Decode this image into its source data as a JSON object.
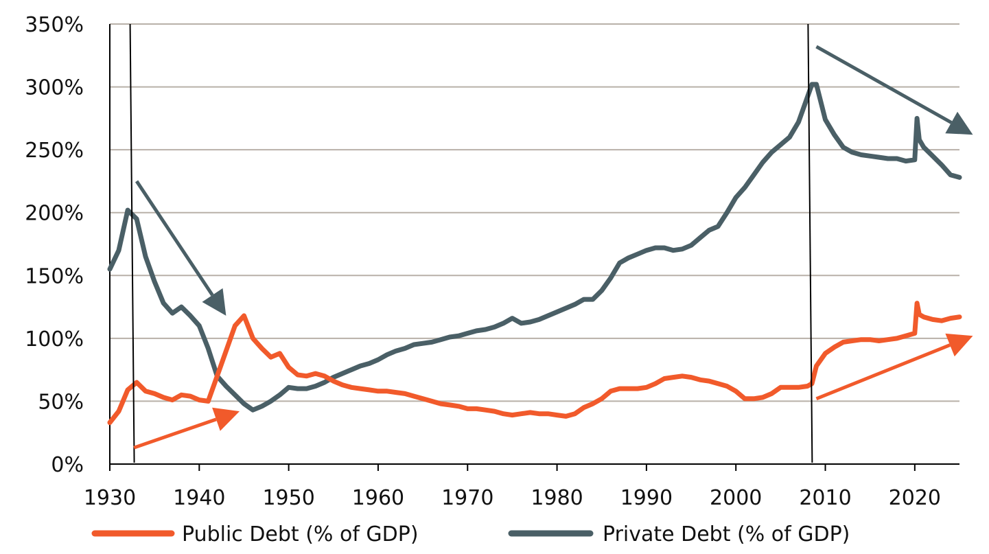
{
  "chart_data": {
    "type": "line",
    "title": "",
    "xlabel": "",
    "ylabel": "",
    "xlim": [
      1930,
      2025
    ],
    "ylim": [
      0,
      350
    ],
    "grid": true,
    "legend_position": "bottom",
    "x_ticks": [
      1930,
      1940,
      1950,
      1960,
      1970,
      1980,
      1990,
      2000,
      2010,
      2020
    ],
    "x_tick_labels": [
      "1930",
      "1940",
      "1950",
      "1960",
      "1970",
      "1980",
      "1990",
      "2000",
      "2010",
      "2020"
    ],
    "y_ticks": [
      0,
      50,
      100,
      150,
      200,
      250,
      300,
      350
    ],
    "y_tick_labels": [
      "0%",
      "50%",
      "100%",
      "150%",
      "200%",
      "250%",
      "300%",
      "350%"
    ],
    "colors": {
      "public": "#f15a2b",
      "private": "#4a5f66",
      "grid": "#b8b0a8",
      "axis": "#000000"
    },
    "series": [
      {
        "name": "Public Debt (% of GDP)",
        "key": "public",
        "x": [
          1930,
          1931,
          1932,
          1933,
          1934,
          1935,
          1936,
          1937,
          1938,
          1939,
          1940,
          1941,
          1942,
          1943,
          1944,
          1945,
          1946,
          1947,
          1948,
          1949,
          1950,
          1951,
          1952,
          1953,
          1954,
          1955,
          1956,
          1957,
          1958,
          1959,
          1960,
          1961,
          1962,
          1963,
          1964,
          1965,
          1966,
          1967,
          1968,
          1969,
          1970,
          1971,
          1972,
          1973,
          1974,
          1975,
          1976,
          1977,
          1978,
          1979,
          1980,
          1981,
          1982,
          1983,
          1984,
          1985,
          1986,
          1987,
          1988,
          1989,
          1990,
          1991,
          1992,
          1993,
          1994,
          1995,
          1996,
          1997,
          1998,
          1999,
          2000,
          2001,
          2002,
          2003,
          2004,
          2005,
          2006,
          2007,
          2008,
          2008.5,
          2009,
          2010,
          2011,
          2012,
          2013,
          2014,
          2015,
          2016,
          2017,
          2018,
          2019,
          2020,
          2020.25,
          2020.5,
          2021,
          2022,
          2023,
          2024,
          2025
        ],
        "values": [
          33,
          42,
          59,
          65,
          58,
          56,
          53,
          51,
          55,
          54,
          51,
          50,
          70,
          90,
          110,
          118,
          100,
          92,
          85,
          88,
          77,
          71,
          70,
          72,
          70,
          66,
          63,
          61,
          60,
          59,
          58,
          58,
          57,
          56,
          54,
          52,
          50,
          48,
          47,
          46,
          44,
          44,
          43,
          42,
          40,
          39,
          40,
          41,
          40,
          40,
          39,
          38,
          40,
          45,
          48,
          52,
          58,
          60,
          60,
          60,
          61,
          64,
          68,
          69,
          70,
          69,
          67,
          66,
          64,
          62,
          58,
          52,
          52,
          53,
          56,
          61,
          61,
          61,
          62,
          64,
          78,
          88,
          93,
          97,
          98,
          99,
          99,
          98,
          99,
          100,
          102,
          104,
          128,
          119,
          117,
          115,
          114,
          116,
          117
        ]
      },
      {
        "name": "Private Debt (% of GDP)",
        "key": "private",
        "x": [
          1930,
          1931,
          1932,
          1933,
          1934,
          1935,
          1936,
          1937,
          1938,
          1939,
          1940,
          1941,
          1942,
          1943,
          1944,
          1945,
          1946,
          1947,
          1948,
          1949,
          1950,
          1951,
          1952,
          1953,
          1954,
          1955,
          1956,
          1957,
          1958,
          1959,
          1960,
          1961,
          1962,
          1963,
          1964,
          1965,
          1966,
          1967,
          1968,
          1969,
          1970,
          1971,
          1972,
          1973,
          1974,
          1975,
          1976,
          1977,
          1978,
          1979,
          1980,
          1981,
          1982,
          1983,
          1984,
          1985,
          1986,
          1987,
          1988,
          1989,
          1990,
          1991,
          1992,
          1993,
          1994,
          1995,
          1996,
          1997,
          1998,
          1999,
          2000,
          2001,
          2002,
          2003,
          2004,
          2005,
          2006,
          2007,
          2008,
          2008.5,
          2009,
          2010,
          2011,
          2012,
          2013,
          2014,
          2015,
          2016,
          2017,
          2018,
          2019,
          2020,
          2020.25,
          2020.5,
          2021,
          2022,
          2023,
          2024,
          2025
        ],
        "values": [
          155,
          170,
          202,
          195,
          165,
          145,
          128,
          120,
          125,
          118,
          110,
          92,
          70,
          62,
          55,
          48,
          43,
          46,
          50,
          55,
          61,
          60,
          60,
          62,
          65,
          69,
          72,
          75,
          78,
          80,
          83,
          87,
          90,
          92,
          95,
          96,
          97,
          99,
          101,
          102,
          104,
          106,
          107,
          109,
          112,
          116,
          112,
          113,
          115,
          118,
          121,
          124,
          127,
          131,
          131,
          138,
          148,
          160,
          164,
          167,
          170,
          172,
          172,
          170,
          171,
          174,
          180,
          186,
          189,
          200,
          212,
          220,
          230,
          240,
          248,
          254,
          260,
          272,
          292,
          302,
          302,
          274,
          262,
          252,
          248,
          246,
          245,
          244,
          243,
          243,
          241,
          242,
          275,
          258,
          252,
          245,
          238,
          230,
          228
        ]
      }
    ],
    "annotations": [
      {
        "type": "vertical-line",
        "x": 1932.5,
        "label": ""
      },
      {
        "type": "vertical-line",
        "x": 2008.3,
        "label": ""
      },
      {
        "type": "arrow",
        "series": "private",
        "direction": "down",
        "from": [
          1933,
          225
        ],
        "to": [
          1943,
          118
        ]
      },
      {
        "type": "arrow",
        "series": "public",
        "direction": "up",
        "from": [
          1932.7,
          13
        ],
        "to": [
          1944.5,
          42
        ]
      },
      {
        "type": "arrow",
        "series": "private",
        "direction": "down",
        "from": [
          2009,
          332
        ],
        "to": [
          2026.5,
          262
        ]
      },
      {
        "type": "arrow",
        "series": "public",
        "direction": "up",
        "from": [
          2009,
          52
        ],
        "to": [
          2026.5,
          102
        ]
      }
    ]
  }
}
